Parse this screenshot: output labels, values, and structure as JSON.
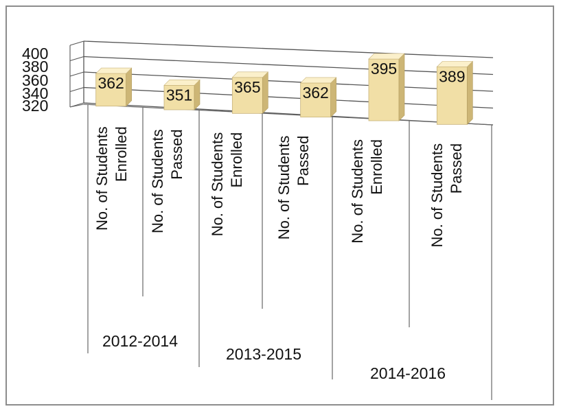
{
  "chart_data": {
    "type": "bar",
    "title": "",
    "xlabel": "",
    "ylabel": "",
    "ylim": [
      320,
      400
    ],
    "yticks": [
      "320",
      "340",
      "360",
      "380",
      "400"
    ],
    "grid": true,
    "categories": [
      "No. of Students Enrolled",
      "No. of Students Passed",
      "No. of Students Enrolled",
      "No. of Students Passed",
      "No. of Students Enrolled",
      "No. of Students Passed"
    ],
    "category_lines": [
      [
        "No. of Students",
        "Enrolled"
      ],
      [
        "No. of Students",
        "Passed"
      ],
      [
        "No. of Students",
        "Enrolled"
      ],
      [
        "No. of Students",
        "Passed"
      ],
      [
        "No. of Students",
        "Enrolled"
      ],
      [
        "No. of Students",
        "Passed"
      ]
    ],
    "groups": [
      "2012-2014",
      "2013-2015",
      "2014-2016"
    ],
    "values": [
      362,
      351,
      365,
      362,
      395,
      389
    ],
    "data_labels": [
      "362",
      "351",
      "365",
      "362",
      "395",
      "389"
    ],
    "bar_color": "#f1dfa6",
    "bar_side_color": "#cdb676",
    "bar_top_color": "#fbf0cb"
  }
}
